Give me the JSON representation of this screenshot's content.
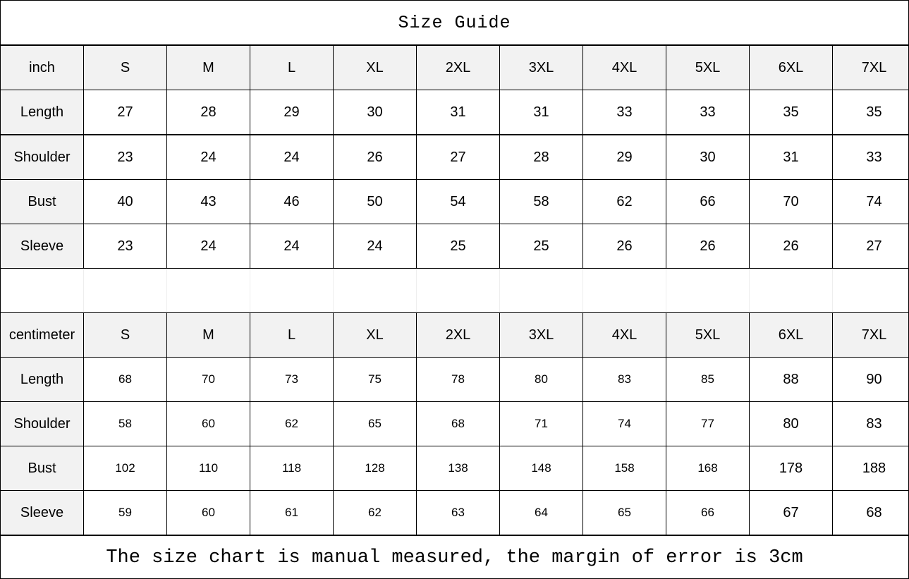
{
  "title": "Size Guide",
  "sizes": [
    "S",
    "M",
    "L",
    "XL",
    "2XL",
    "3XL",
    "4XL",
    "5XL",
    "6XL",
    "7XL"
  ],
  "inch": {
    "unit_label": "inch",
    "rows": [
      {
        "label": "Length",
        "values": [
          "27",
          "28",
          "29",
          "30",
          "31",
          "31",
          "33",
          "33",
          "35",
          "35"
        ]
      },
      {
        "label": "Shoulder",
        "values": [
          "23",
          "24",
          "24",
          "26",
          "27",
          "28",
          "29",
          "30",
          "31",
          "33"
        ]
      },
      {
        "label": "Bust",
        "values": [
          "40",
          "43",
          "46",
          "50",
          "54",
          "58",
          "62",
          "66",
          "70",
          "74"
        ]
      },
      {
        "label": "Sleeve",
        "values": [
          "23",
          "24",
          "24",
          "24",
          "25",
          "25",
          "26",
          "26",
          "26",
          "27"
        ]
      }
    ]
  },
  "centimeter": {
    "unit_label": "centimeter",
    "rows": [
      {
        "label": "Length",
        "values": [
          "68",
          "70",
          "73",
          "75",
          "78",
          "80",
          "83",
          "85",
          "88",
          "90"
        ]
      },
      {
        "label": "Shoulder",
        "values": [
          "58",
          "60",
          "62",
          "65",
          "68",
          "71",
          "74",
          "77",
          "80",
          "83"
        ]
      },
      {
        "label": "Bust",
        "values": [
          "102",
          "110",
          "118",
          "128",
          "138",
          "148",
          "158",
          "168",
          "178",
          "188"
        ]
      },
      {
        "label": "Sleeve",
        "values": [
          "59",
          "60",
          "61",
          "62",
          "63",
          "64",
          "65",
          "66",
          "67",
          "68"
        ]
      }
    ]
  },
  "footer_note": "The size chart is manual measured, the margin of error is 3cm"
}
